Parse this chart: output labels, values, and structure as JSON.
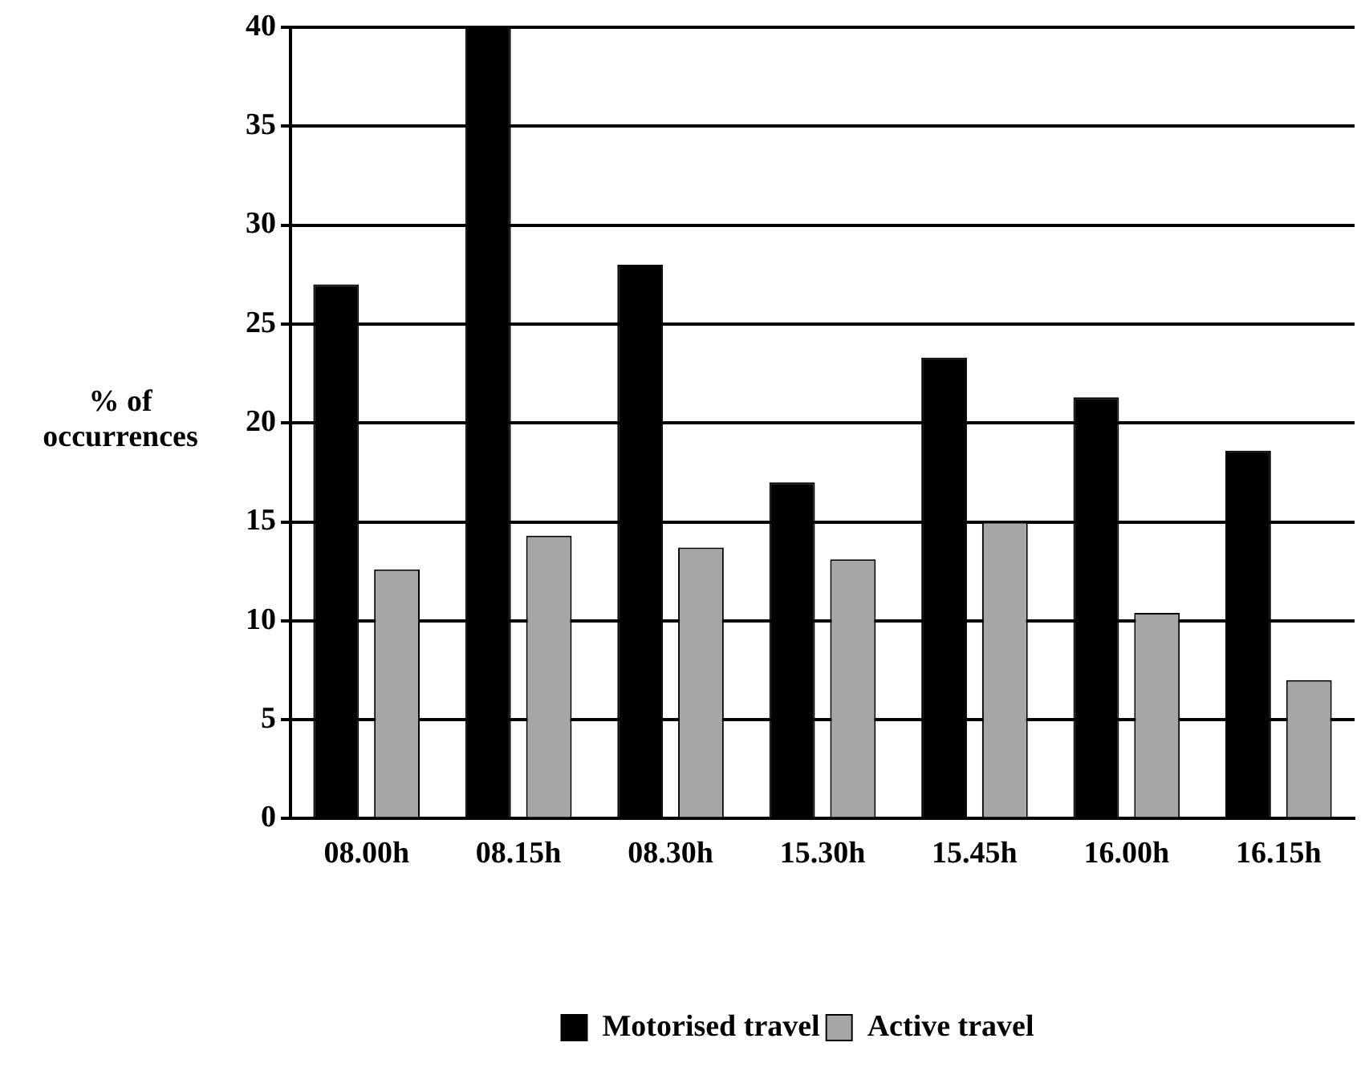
{
  "chart_data": {
    "type": "bar",
    "ylabel": "% of\noccurrences",
    "categories": [
      "08.00h",
      "08.15h",
      "08.30h",
      "15.30h",
      "15.45h",
      "16.00h",
      "16.15h"
    ],
    "series": [
      {
        "name": "Motorised travel",
        "color": "#000000",
        "values": [
          27,
          40,
          28,
          17,
          23.3,
          21.3,
          18.6
        ]
      },
      {
        "name": "Active travel",
        "color": "#a6a6a6",
        "values": [
          12.6,
          14.3,
          13.7,
          13.1,
          15,
          10.4,
          7
        ]
      }
    ],
    "ylim": [
      0,
      40
    ],
    "yticks": [
      0,
      5,
      10,
      15,
      20,
      25,
      30,
      35,
      40
    ],
    "grid": "y",
    "legend": "bottom"
  }
}
